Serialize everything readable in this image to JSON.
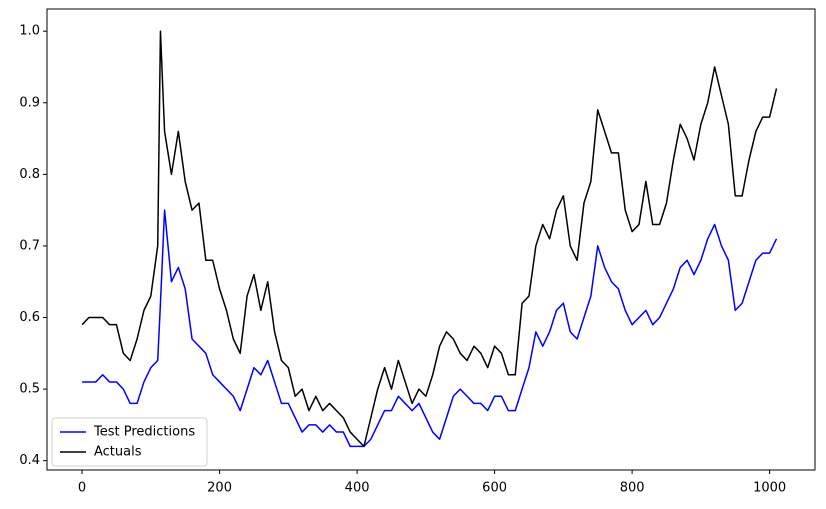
{
  "chart_data": {
    "type": "line",
    "x": [
      0,
      10,
      20,
      30,
      40,
      50,
      60,
      70,
      80,
      90,
      100,
      110,
      114,
      120,
      130,
      140,
      150,
      160,
      170,
      180,
      190,
      200,
      210,
      220,
      230,
      240,
      250,
      260,
      270,
      280,
      290,
      300,
      310,
      320,
      330,
      340,
      350,
      360,
      370,
      380,
      390,
      400,
      410,
      420,
      430,
      440,
      450,
      460,
      470,
      480,
      490,
      500,
      510,
      520,
      530,
      540,
      550,
      560,
      570,
      580,
      590,
      600,
      610,
      620,
      630,
      640,
      650,
      660,
      670,
      680,
      690,
      700,
      710,
      720,
      730,
      740,
      750,
      760,
      770,
      780,
      790,
      800,
      810,
      820,
      830,
      840,
      850,
      860,
      870,
      880,
      890,
      900,
      910,
      920,
      930,
      940,
      950,
      960,
      970,
      980,
      990,
      1000,
      1010
    ],
    "series": [
      {
        "name": "Test Predictions",
        "color": "#0000ff",
        "values": [
          0.51,
          0.51,
          0.51,
          0.52,
          0.51,
          0.51,
          0.5,
          0.48,
          0.48,
          0.51,
          0.53,
          0.54,
          0.62,
          0.75,
          0.65,
          0.67,
          0.64,
          0.57,
          0.56,
          0.55,
          0.52,
          0.51,
          0.5,
          0.49,
          0.47,
          0.5,
          0.53,
          0.52,
          0.54,
          0.51,
          0.48,
          0.48,
          0.46,
          0.44,
          0.45,
          0.45,
          0.44,
          0.45,
          0.44,
          0.44,
          0.42,
          0.42,
          0.42,
          0.43,
          0.45,
          0.47,
          0.47,
          0.49,
          0.48,
          0.47,
          0.48,
          0.46,
          0.44,
          0.43,
          0.46,
          0.49,
          0.5,
          0.49,
          0.48,
          0.48,
          0.47,
          0.49,
          0.49,
          0.47,
          0.47,
          0.5,
          0.53,
          0.58,
          0.56,
          0.58,
          0.61,
          0.62,
          0.58,
          0.57,
          0.6,
          0.63,
          0.7,
          0.67,
          0.65,
          0.64,
          0.61,
          0.59,
          0.6,
          0.61,
          0.59,
          0.6,
          0.62,
          0.64,
          0.67,
          0.68,
          0.66,
          0.68,
          0.71,
          0.73,
          0.7,
          0.68,
          0.61,
          0.62,
          0.65,
          0.68,
          0.69,
          0.69,
          0.71
        ]
      },
      {
        "name": "Actuals",
        "color": "#000000",
        "values": [
          0.59,
          0.6,
          0.6,
          0.6,
          0.59,
          0.59,
          0.55,
          0.54,
          0.57,
          0.61,
          0.63,
          0.7,
          1.0,
          0.86,
          0.8,
          0.86,
          0.79,
          0.75,
          0.76,
          0.68,
          0.68,
          0.64,
          0.61,
          0.57,
          0.55,
          0.63,
          0.66,
          0.61,
          0.65,
          0.58,
          0.54,
          0.53,
          0.49,
          0.5,
          0.47,
          0.49,
          0.47,
          0.48,
          0.47,
          0.46,
          0.44,
          0.43,
          0.42,
          0.46,
          0.5,
          0.53,
          0.5,
          0.54,
          0.51,
          0.48,
          0.5,
          0.49,
          0.52,
          0.56,
          0.58,
          0.57,
          0.55,
          0.54,
          0.56,
          0.55,
          0.53,
          0.56,
          0.55,
          0.52,
          0.52,
          0.62,
          0.63,
          0.7,
          0.73,
          0.71,
          0.75,
          0.77,
          0.7,
          0.68,
          0.76,
          0.79,
          0.89,
          0.86,
          0.83,
          0.83,
          0.75,
          0.72,
          0.73,
          0.79,
          0.73,
          0.73,
          0.76,
          0.82,
          0.87,
          0.85,
          0.82,
          0.87,
          0.9,
          0.95,
          0.91,
          0.87,
          0.77,
          0.77,
          0.82,
          0.86,
          0.88,
          0.88,
          0.92
        ]
      }
    ],
    "xlim": [
      -51,
      1066
    ],
    "ylim": [
      0.387,
      1.031
    ],
    "xticks": [
      0,
      200,
      400,
      600,
      800,
      1000
    ],
    "yticks": [
      0.4,
      0.5,
      0.6,
      0.7,
      0.8,
      0.9,
      {
        "value": 1,
        "label": "1.0"
      }
    ],
    "legend": "lower left"
  }
}
